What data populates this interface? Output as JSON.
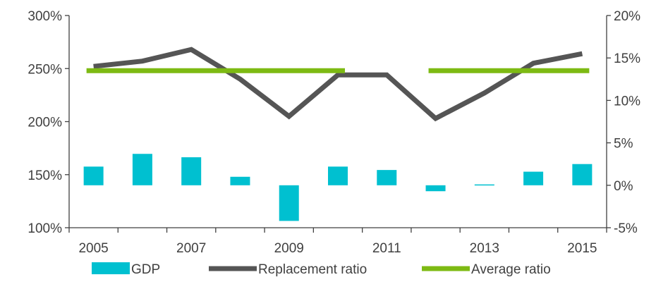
{
  "chart_data": {
    "type": "bar",
    "categories": [
      "2005",
      "2006",
      "2007",
      "2008",
      "2009",
      "2010",
      "2011",
      "2012",
      "2013",
      "2014",
      "2015"
    ],
    "x_tick_labels": [
      "2005",
      "2007",
      "2009",
      "2011",
      "2013",
      "2015"
    ],
    "series": [
      {
        "name": "GDP",
        "type": "bar",
        "axis": "right",
        "color": "#00c0d0",
        "values": [
          2.2,
          3.7,
          3.3,
          1.0,
          -4.2,
          2.2,
          1.8,
          -0.7,
          0.1,
          1.6,
          2.5
        ]
      },
      {
        "name": "Replacement ratio",
        "type": "line",
        "axis": "left",
        "color": "#555555",
        "values": [
          252,
          257,
          268,
          240,
          205,
          244,
          244,
          203,
          227,
          255,
          264
        ]
      },
      {
        "name": "Average ratio",
        "type": "line",
        "axis": "left",
        "color": "#7dba13",
        "segments": [
          {
            "x": [
              "2005",
              "2010"
            ],
            "value": 248
          },
          {
            "x": [
              "2012",
              "2015"
            ],
            "value": 248
          }
        ]
      }
    ],
    "y_left": {
      "ylim": [
        100,
        300
      ],
      "ticks": [
        100,
        150,
        200,
        250,
        300
      ],
      "tick_labels": [
        "100%",
        "150%",
        "200%",
        "250%",
        "300%"
      ]
    },
    "y_right": {
      "ylim": [
        -5,
        20
      ],
      "ticks": [
        -5,
        0,
        5,
        10,
        15,
        20
      ],
      "tick_labels": [
        "-5%",
        "0%",
        "5%",
        "10%",
        "15%",
        "20%"
      ]
    },
    "grid": false,
    "legend_position": "bottom"
  }
}
